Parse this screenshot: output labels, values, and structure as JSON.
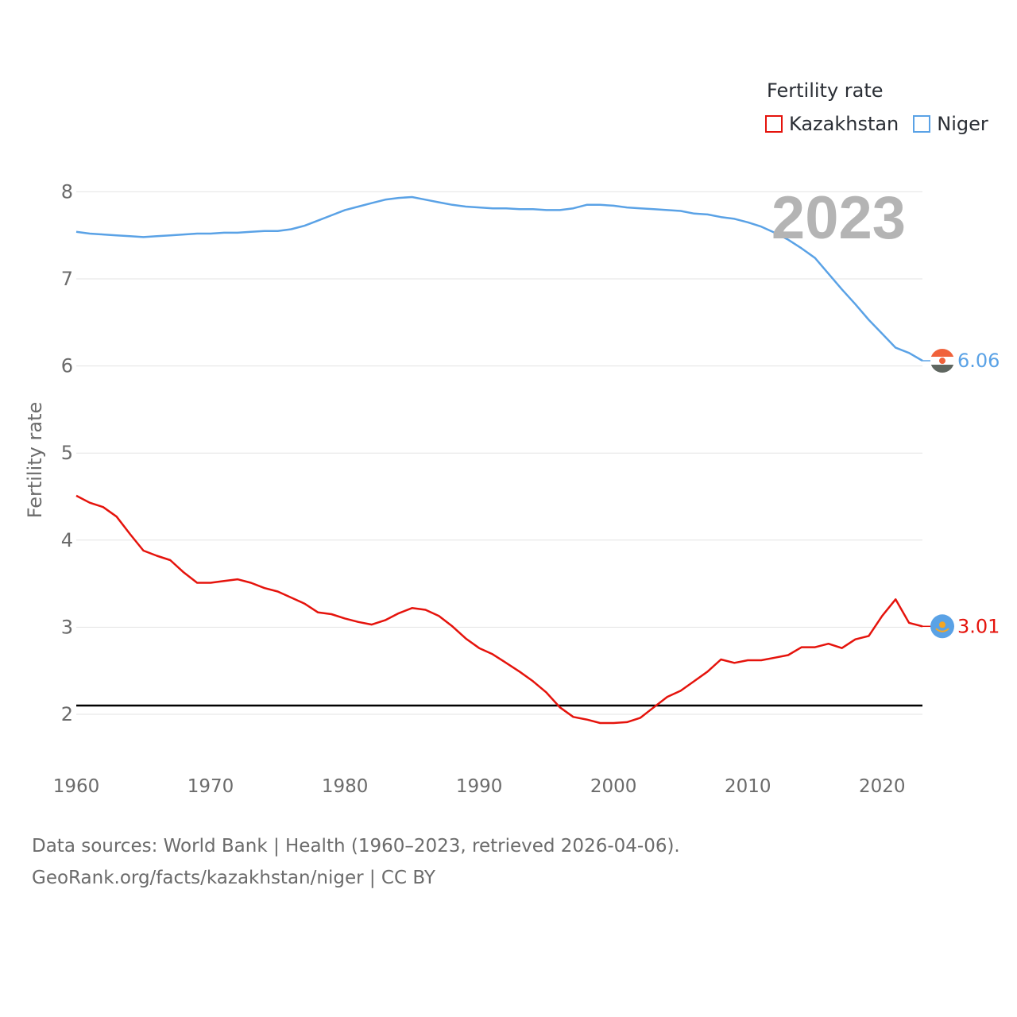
{
  "legend": {
    "title": "Fertility rate"
  },
  "footer": {
    "line1": "Data sources: World Bank | Health (1960–2023, retrieved 2026-04-06).",
    "line2": "GeoRank.org/facts/kazakhstan/niger | CC BY"
  },
  "chart_data": {
    "type": "line",
    "title": "Fertility rate",
    "ylabel": "Fertility rate",
    "xlabel": "",
    "year_label": "2023",
    "xlim": [
      1960,
      2023
    ],
    "ylim": [
      1.5,
      8.2
    ],
    "x_ticks": [
      1960,
      1970,
      1980,
      1990,
      2000,
      2010,
      2020
    ],
    "y_ticks": [
      2,
      3,
      4,
      5,
      6,
      7,
      8
    ],
    "reference_line": 2.1,
    "x": [
      1960,
      1961,
      1962,
      1963,
      1964,
      1965,
      1966,
      1967,
      1968,
      1969,
      1970,
      1971,
      1972,
      1973,
      1974,
      1975,
      1976,
      1977,
      1978,
      1979,
      1980,
      1981,
      1982,
      1983,
      1984,
      1985,
      1986,
      1987,
      1988,
      1989,
      1990,
      1991,
      1992,
      1993,
      1994,
      1995,
      1996,
      1997,
      1998,
      1999,
      2000,
      2001,
      2002,
      2003,
      2004,
      2005,
      2006,
      2007,
      2008,
      2009,
      2010,
      2011,
      2012,
      2013,
      2014,
      2015,
      2016,
      2017,
      2018,
      2019,
      2020,
      2021,
      2022,
      2023
    ],
    "series": [
      {
        "name": "Kazakhstan",
        "color": "#e5130c",
        "end_label": "3.01",
        "values": [
          4.51,
          4.43,
          4.38,
          4.27,
          4.07,
          3.88,
          3.82,
          3.77,
          3.63,
          3.51,
          3.51,
          3.53,
          3.55,
          3.51,
          3.45,
          3.41,
          3.34,
          3.27,
          3.17,
          3.15,
          3.1,
          3.06,
          3.03,
          3.08,
          3.16,
          3.22,
          3.2,
          3.13,
          3.01,
          2.87,
          2.76,
          2.69,
          2.59,
          2.49,
          2.38,
          2.25,
          2.08,
          1.97,
          1.94,
          1.9,
          1.9,
          1.91,
          1.96,
          2.08,
          2.2,
          2.27,
          2.38,
          2.49,
          2.63,
          2.59,
          2.62,
          2.62,
          2.65,
          2.68,
          2.77,
          2.77,
          2.81,
          2.76,
          2.86,
          2.9,
          3.13,
          3.32,
          3.05,
          3.01
        ]
      },
      {
        "name": "Niger",
        "color": "#5aa2e6",
        "end_label": "6.06",
        "values": [
          7.54,
          7.52,
          7.51,
          7.5,
          7.49,
          7.48,
          7.49,
          7.5,
          7.51,
          7.52,
          7.52,
          7.53,
          7.53,
          7.54,
          7.55,
          7.55,
          7.57,
          7.61,
          7.67,
          7.73,
          7.79,
          7.83,
          7.87,
          7.91,
          7.93,
          7.94,
          7.91,
          7.88,
          7.85,
          7.83,
          7.82,
          7.81,
          7.81,
          7.8,
          7.8,
          7.79,
          7.79,
          7.81,
          7.85,
          7.85,
          7.84,
          7.82,
          7.81,
          7.8,
          7.79,
          7.78,
          7.75,
          7.74,
          7.71,
          7.69,
          7.65,
          7.6,
          7.53,
          7.45,
          7.35,
          7.24,
          7.06,
          6.88,
          6.71,
          6.53,
          6.37,
          6.21,
          6.15,
          6.06
        ]
      }
    ]
  }
}
